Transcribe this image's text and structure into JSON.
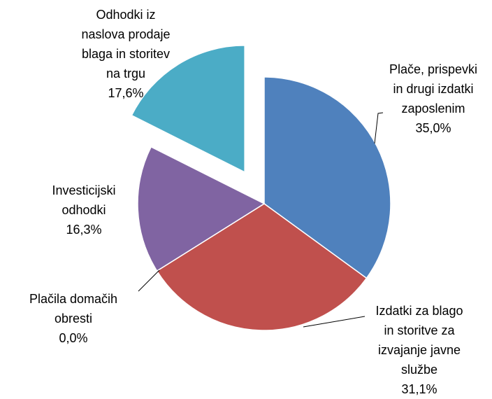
{
  "chart_data": {
    "type": "pie",
    "categories": [
      [
        "Plače, prispevki",
        "in drugi izdatki",
        "zaposlenim"
      ],
      [
        "Izdatki za blago",
        "in storitve za",
        "izvajanje javne",
        "službe"
      ],
      [
        "Plačila domačih",
        "obresti"
      ],
      [
        "Investicijski",
        "odhodki"
      ],
      [
        "Odhodki iz",
        "naslova prodaje",
        "blaga in storitev",
        "na trgu"
      ]
    ],
    "values": [
      35.0,
      31.1,
      0.0,
      16.3,
      17.6
    ],
    "value_labels": [
      "35,0%",
      "31,1%",
      "0,0%",
      "16,3%",
      "17,6%"
    ],
    "colors": [
      "#4f81bd",
      "#c0504d",
      "#9bbb59",
      "#8064a2",
      "#4bacc6"
    ]
  }
}
